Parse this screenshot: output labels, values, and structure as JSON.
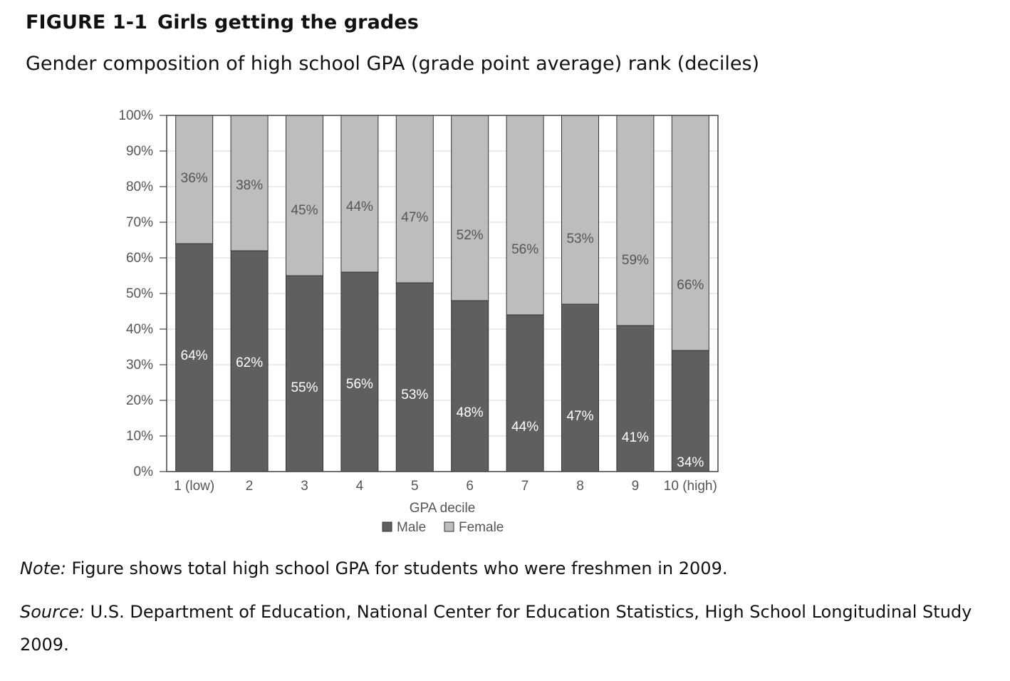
{
  "figure": {
    "label": "FIGURE 1-1",
    "title": "Girls getting the grades",
    "subtitle": "Gender composition of high school GPA (grade point average) rank (deciles)"
  },
  "chart_data": {
    "type": "bar",
    "stacked": true,
    "categories": [
      "1 (low)",
      "2",
      "3",
      "4",
      "5",
      "6",
      "7",
      "8",
      "9",
      "10 (high)"
    ],
    "series": [
      {
        "name": "Male",
        "values": [
          64,
          62,
          55,
          56,
          53,
          48,
          44,
          47,
          41,
          34
        ],
        "labels": [
          "64%",
          "62%",
          "55%",
          "56%",
          "53%",
          "48%",
          "44%",
          "47%",
          "41%",
          "34%"
        ],
        "color": "#5f5f5f"
      },
      {
        "name": "Female",
        "values": [
          36,
          38,
          45,
          44,
          47,
          52,
          56,
          53,
          59,
          66
        ],
        "labels": [
          "36%",
          "38%",
          "45%",
          "44%",
          "47%",
          "52%",
          "56%",
          "53%",
          "59%",
          "66%"
        ],
        "color": "#bdbdbd"
      }
    ],
    "xlabel": "GPA decile",
    "ylabel": "",
    "ylim": [
      0,
      100
    ],
    "yticks": [
      "0%",
      "10%",
      "20%",
      "30%",
      "40%",
      "50%",
      "60%",
      "70%",
      "80%",
      "90%",
      "100%"
    ],
    "grid": true,
    "legend": "bottom-center"
  },
  "note": {
    "label": "Note:",
    "text": " Figure shows total high school GPA for students who were freshmen in 2009."
  },
  "source": {
    "label": "Source:",
    "text": " U.S. Department of Education, National Center for Education Statistics, High School Longitudinal Study 2009."
  }
}
